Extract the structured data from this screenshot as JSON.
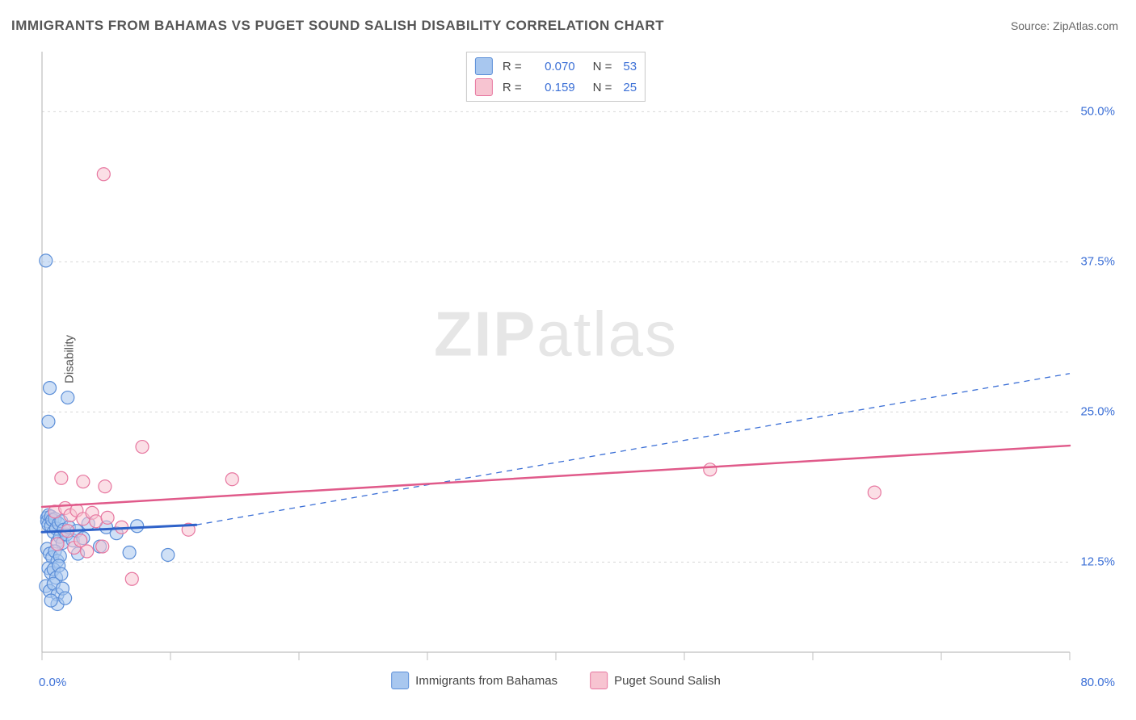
{
  "title": "IMMIGRANTS FROM BAHAMAS VS PUGET SOUND SALISH DISABILITY CORRELATION CHART",
  "source": "Source: ZipAtlas.com",
  "watermark": {
    "bold": "ZIP",
    "rest": "atlas"
  },
  "chart": {
    "type": "scatter",
    "background_color": "#ffffff",
    "grid_color": "#d8d8d8",
    "axis_color": "#bfbfbf",
    "tick_label_color": "#3b6fd6",
    "ylabel": "Disability",
    "ylabel_color": "#555555",
    "xlim": [
      0,
      80
    ],
    "ylim": [
      5,
      55
    ],
    "x_ticks_major": [
      0,
      10,
      20,
      30,
      40,
      50,
      60,
      70,
      80
    ],
    "x_tick_labels": {
      "min": "0.0%",
      "max": "80.0%"
    },
    "y_gridlines": [
      12.5,
      25.0,
      37.5,
      50.0
    ],
    "y_tick_labels": [
      "12.5%",
      "25.0%",
      "37.5%",
      "50.0%"
    ],
    "marker_radius": 8,
    "marker_opacity": 0.55,
    "series": [
      {
        "name": "Immigrants from Bahamas",
        "fill": "#a8c7ef",
        "stroke": "#5b8ed8",
        "trend": {
          "x1": 0,
          "y1": 15.0,
          "x2": 12,
          "y2": 15.6,
          "dash": false,
          "solid_color": "#2e62c9",
          "width": 3
        },
        "trend_ext": {
          "x1": 12,
          "y1": 15.6,
          "x2": 80,
          "y2": 28.2,
          "dash": true,
          "dash_color": "#3b6fd6",
          "width": 1.3
        },
        "points": [
          [
            0.3,
            37.6
          ],
          [
            0.6,
            27.0
          ],
          [
            0.5,
            24.2
          ],
          [
            2.0,
            26.2
          ],
          [
            0.4,
            16.2
          ],
          [
            0.4,
            15.9
          ],
          [
            0.5,
            16.4
          ],
          [
            0.5,
            15.6
          ],
          [
            0.7,
            16.3
          ],
          [
            0.7,
            15.5
          ],
          [
            0.8,
            16.0
          ],
          [
            0.9,
            15.0
          ],
          [
            1.0,
            16.1
          ],
          [
            1.1,
            15.3
          ],
          [
            1.2,
            14.2
          ],
          [
            1.3,
            15.7
          ],
          [
            1.4,
            14.6
          ],
          [
            1.5,
            15.9
          ],
          [
            1.6,
            14.1
          ],
          [
            1.7,
            15.2
          ],
          [
            1.9,
            14.8
          ],
          [
            2.1,
            15.4
          ],
          [
            2.4,
            14.3
          ],
          [
            2.7,
            15.1
          ],
          [
            3.2,
            14.5
          ],
          [
            3.6,
            15.7
          ],
          [
            0.4,
            13.6
          ],
          [
            0.6,
            13.2
          ],
          [
            0.8,
            12.9
          ],
          [
            1.0,
            13.4
          ],
          [
            1.2,
            12.6
          ],
          [
            1.4,
            13.0
          ],
          [
            0.5,
            12.0
          ],
          [
            0.7,
            11.6
          ],
          [
            0.9,
            11.9
          ],
          [
            1.1,
            11.2
          ],
          [
            1.3,
            12.2
          ],
          [
            1.5,
            11.5
          ],
          [
            0.3,
            10.5
          ],
          [
            0.6,
            10.1
          ],
          [
            0.9,
            10.7
          ],
          [
            1.2,
            9.8
          ],
          [
            1.6,
            10.3
          ],
          [
            2.8,
            13.2
          ],
          [
            4.5,
            13.8
          ],
          [
            5.0,
            15.4
          ],
          [
            5.8,
            14.9
          ],
          [
            6.8,
            13.3
          ],
          [
            7.4,
            15.5
          ],
          [
            9.8,
            13.1
          ],
          [
            1.2,
            9.0
          ],
          [
            0.7,
            9.3
          ],
          [
            1.8,
            9.5
          ]
        ]
      },
      {
        "name": "Puget Sound Salish",
        "fill": "#f7c4d1",
        "stroke": "#e777a0",
        "trend": {
          "x1": 0,
          "y1": 17.1,
          "x2": 80,
          "y2": 22.2,
          "dash": false,
          "solid_color": "#e05a8a",
          "width": 2.5
        },
        "points": [
          [
            4.8,
            44.8
          ],
          [
            1.5,
            19.5
          ],
          [
            3.2,
            19.2
          ],
          [
            4.9,
            18.8
          ],
          [
            7.8,
            22.1
          ],
          [
            14.8,
            19.4
          ],
          [
            1.0,
            16.7
          ],
          [
            1.8,
            17.0
          ],
          [
            2.2,
            16.4
          ],
          [
            2.7,
            16.8
          ],
          [
            3.2,
            16.1
          ],
          [
            3.9,
            16.6
          ],
          [
            4.2,
            15.9
          ],
          [
            5.1,
            16.2
          ],
          [
            1.2,
            14.0
          ],
          [
            2.5,
            13.7
          ],
          [
            3.0,
            14.3
          ],
          [
            3.5,
            13.4
          ],
          [
            4.7,
            13.8
          ],
          [
            2.0,
            15.1
          ],
          [
            6.2,
            15.4
          ],
          [
            11.4,
            15.2
          ],
          [
            7.0,
            11.1
          ],
          [
            52.0,
            20.2
          ],
          [
            64.8,
            18.3
          ]
        ]
      }
    ],
    "legend_top": [
      {
        "swatch_fill": "#a8c7ef",
        "swatch_stroke": "#5b8ed8",
        "r_label": "R",
        "r_value": "0.070",
        "n_label": "N",
        "n_value": "53"
      },
      {
        "swatch_fill": "#f7c4d1",
        "swatch_stroke": "#e777a0",
        "r_label": "R",
        "r_value": "0.159",
        "n_label": "N",
        "n_value": "25"
      }
    ],
    "legend_bottom": [
      {
        "swatch_fill": "#a8c7ef",
        "swatch_stroke": "#5b8ed8",
        "label": "Immigrants from Bahamas"
      },
      {
        "swatch_fill": "#f7c4d1",
        "swatch_stroke": "#e777a0",
        "label": "Puget Sound Salish"
      }
    ]
  }
}
